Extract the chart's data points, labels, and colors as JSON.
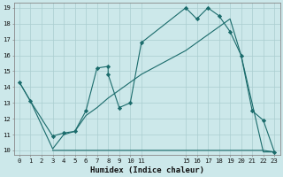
{
  "xlabel": "Humidex (Indice chaleur)",
  "bg_color": "#cce8ea",
  "grid_major_color": "#aacdd0",
  "grid_minor_color": "#bbdadc",
  "line_color": "#1a6b6b",
  "xlim": [
    -0.5,
    23.5
  ],
  "ylim": [
    9.7,
    19.3
  ],
  "yticks": [
    10,
    11,
    12,
    13,
    14,
    15,
    16,
    17,
    18,
    19
  ],
  "xtick_labels": [
    "0",
    "1",
    "2",
    "3",
    "4",
    "5",
    "6",
    "7",
    "8",
    "9",
    "10",
    "11",
    "15",
    "16",
    "17",
    "18",
    "19",
    "20",
    "21",
    "22",
    "23"
  ],
  "xtick_pos": [
    0,
    1,
    2,
    3,
    4,
    5,
    6,
    7,
    8,
    9,
    10,
    11,
    15,
    16,
    17,
    18,
    19,
    20,
    21,
    22,
    23
  ],
  "line1_x": [
    0,
    1,
    3,
    4,
    5,
    6,
    7,
    8,
    8,
    9,
    10,
    11,
    15,
    16,
    17,
    18,
    19,
    20,
    21,
    22,
    23
  ],
  "line1_y": [
    14.3,
    13.1,
    10.9,
    11.1,
    11.2,
    12.5,
    15.2,
    15.3,
    14.8,
    12.7,
    13.0,
    16.8,
    19.0,
    18.3,
    19.0,
    18.5,
    17.5,
    16.0,
    12.5,
    11.9,
    9.9
  ],
  "line2_x": [
    0,
    1,
    3,
    4,
    5,
    6,
    7,
    8,
    9,
    10,
    11,
    15,
    16,
    17,
    18,
    19,
    20,
    22,
    23
  ],
  "line2_y": [
    14.3,
    13.1,
    10.1,
    11.0,
    11.2,
    12.2,
    12.7,
    13.3,
    13.8,
    14.3,
    14.8,
    16.3,
    16.8,
    17.3,
    17.8,
    18.3,
    16.0,
    9.9,
    9.9
  ],
  "line3_x": [
    3,
    11,
    15,
    22,
    23
  ],
  "line3_y": [
    10,
    10,
    10,
    10,
    9.9
  ]
}
